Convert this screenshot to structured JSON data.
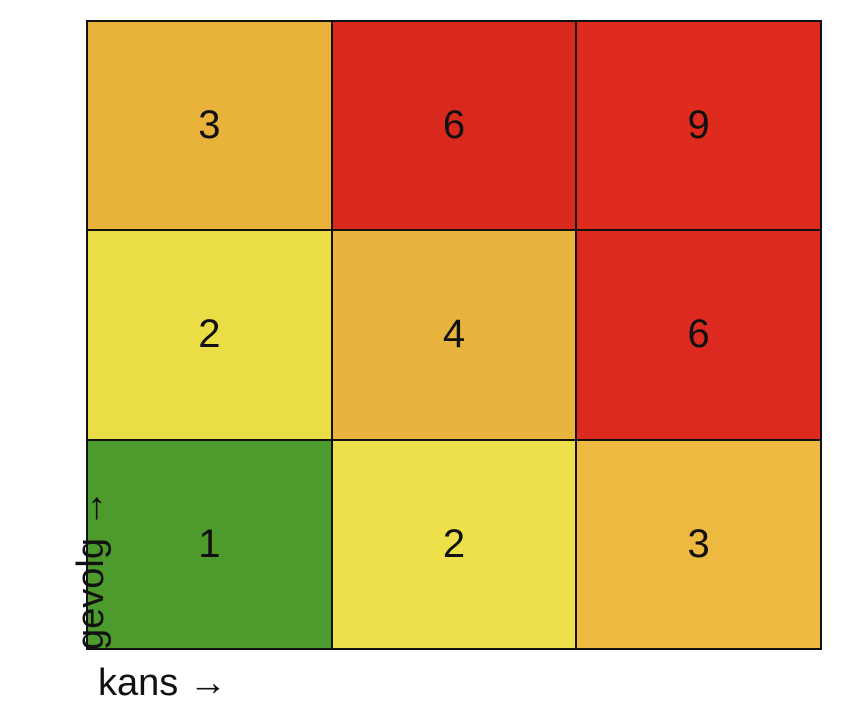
{
  "chart_data": {
    "type": "heatmap",
    "title": "",
    "xlabel": "kans →",
    "ylabel": "gevolg →",
    "x_categories": [
      "",
      "",
      ""
    ],
    "y_categories": [
      "",
      "",
      ""
    ],
    "rows_top_to_bottom": [
      {
        "cells": [
          {
            "value": 3,
            "label": "3",
            "color": "#E9B23A"
          },
          {
            "value": 6,
            "label": "6",
            "color": "#D9291F"
          },
          {
            "value": 9,
            "label": "9",
            "color": "#DE2B1E"
          }
        ]
      },
      {
        "cells": [
          {
            "value": 2,
            "label": "2",
            "color": "#EBDD45"
          },
          {
            "value": 4,
            "label": "4",
            "color": "#E8B43D"
          },
          {
            "value": 6,
            "label": "6",
            "color": "#DD2A20"
          }
        ]
      },
      {
        "cells": [
          {
            "value": 1,
            "label": "1",
            "color": "#4D9A2D"
          },
          {
            "value": 2,
            "label": "2",
            "color": "#EEE04A"
          },
          {
            "value": 3,
            "label": "3",
            "color": "#EEB940"
          }
        ]
      }
    ],
    "grid": true,
    "legend": "none"
  }
}
